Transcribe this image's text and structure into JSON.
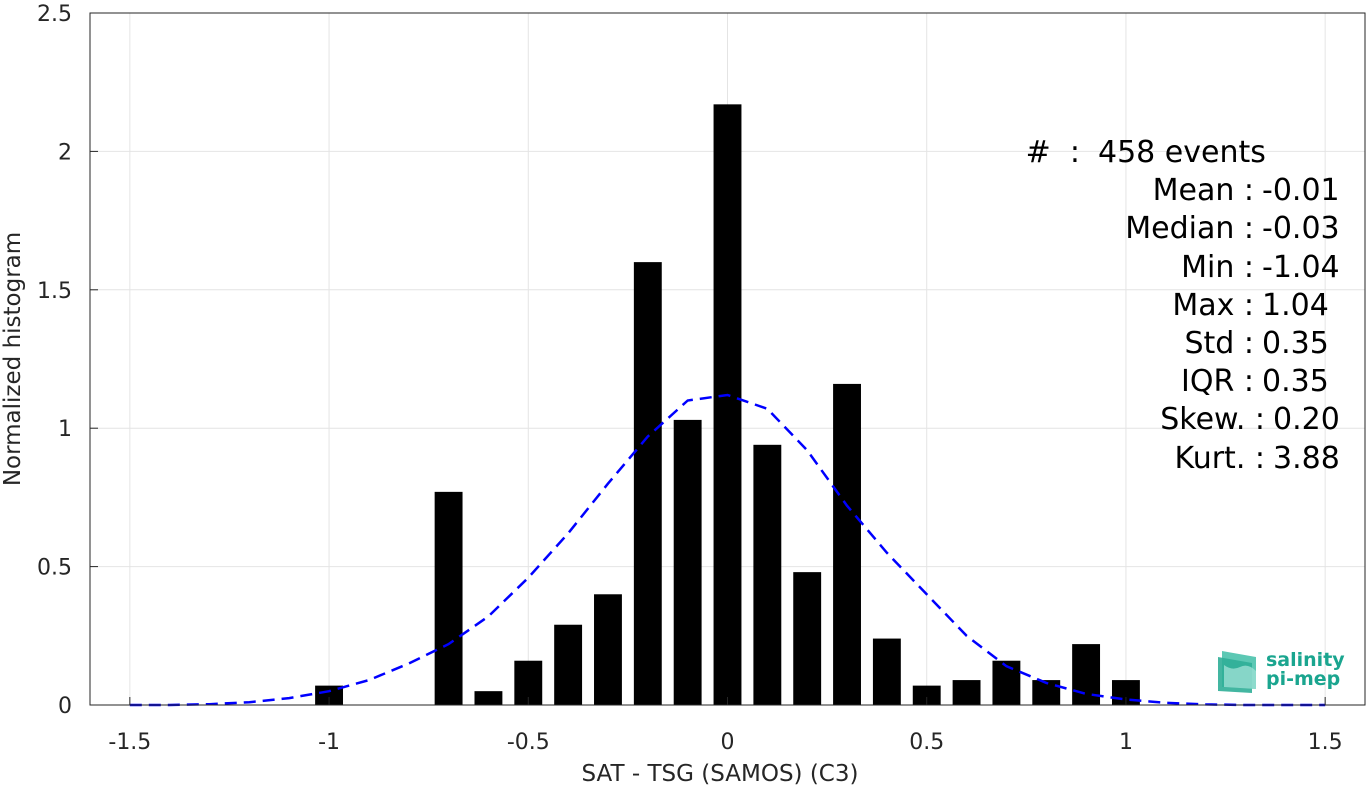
{
  "chart_data": {
    "type": "bar",
    "title": "",
    "xlabel": "SAT - TSG (SAMOS) (C3)",
    "ylabel": "Normalized histogram",
    "xlim": [
      -1.6,
      1.6
    ],
    "ylim": [
      0,
      2.5
    ],
    "xticks": [
      -1.5,
      -1,
      -0.5,
      0,
      0.5,
      1,
      1.5
    ],
    "xtick_labels": [
      "-1.5",
      "-1",
      "-0.5",
      "0",
      "0.5",
      "1",
      "1.5"
    ],
    "yticks": [
      0,
      0.5,
      1,
      1.5,
      2,
      2.5
    ],
    "ytick_labels": [
      "0",
      "0.5",
      "1",
      "1.5",
      "2",
      "2.5"
    ],
    "grid": true,
    "bar_color": "#000000",
    "bar_width": 0.07,
    "bars": [
      {
        "x": -1.0,
        "value": 0.07
      },
      {
        "x": -0.7,
        "value": 0.77
      },
      {
        "x": -0.6,
        "value": 0.05
      },
      {
        "x": -0.5,
        "value": 0.16
      },
      {
        "x": -0.4,
        "value": 0.29
      },
      {
        "x": -0.3,
        "value": 0.4
      },
      {
        "x": -0.2,
        "value": 1.6
      },
      {
        "x": -0.1,
        "value": 1.03
      },
      {
        "x": 0.0,
        "value": 2.17
      },
      {
        "x": 0.1,
        "value": 0.94
      },
      {
        "x": 0.2,
        "value": 0.48
      },
      {
        "x": 0.3,
        "value": 1.16
      },
      {
        "x": 0.4,
        "value": 0.24
      },
      {
        "x": 0.5,
        "value": 0.07
      },
      {
        "x": 0.6,
        "value": 0.09
      },
      {
        "x": 0.7,
        "value": 0.16
      },
      {
        "x": 0.8,
        "value": 0.09
      },
      {
        "x": 0.9,
        "value": 0.22
      },
      {
        "x": 1.0,
        "value": 0.09
      }
    ],
    "fit_curve": {
      "style": "dashed",
      "color": "#0000ff",
      "x": [
        -1.5,
        -1.4,
        -1.3,
        -1.2,
        -1.1,
        -1.0,
        -0.9,
        -0.8,
        -0.7,
        -0.6,
        -0.5,
        -0.4,
        -0.3,
        -0.2,
        -0.1,
        0.0,
        0.1,
        0.2,
        0.3,
        0.4,
        0.5,
        0.6,
        0.7,
        0.8,
        0.9,
        1.0,
        1.1,
        1.2,
        1.3,
        1.4,
        1.5
      ],
      "y": [
        0.0,
        0.0,
        0.003,
        0.01,
        0.025,
        0.05,
        0.09,
        0.15,
        0.22,
        0.32,
        0.46,
        0.62,
        0.8,
        0.97,
        1.1,
        1.12,
        1.07,
        0.92,
        0.72,
        0.55,
        0.4,
        0.25,
        0.14,
        0.08,
        0.04,
        0.02,
        0.008,
        0.002,
        0.0,
        0.0,
        0.0
      ]
    }
  },
  "stats": [
    {
      "name": "#  :",
      "value": "458 events"
    },
    {
      "name": "Mean :",
      "value": "-0.01"
    },
    {
      "name": "Median :",
      "value": "-0.03"
    },
    {
      "name": "Min :",
      "value": "-1.04"
    },
    {
      "name": "Max :",
      "value": "1.04"
    },
    {
      "name": "Std :",
      "value": "0.35"
    },
    {
      "name": "IQR :",
      "value": "0.35"
    },
    {
      "name": "Skew. :",
      "value": "0.20"
    },
    {
      "name": "Kurt. :",
      "value": "3.88"
    }
  ],
  "logo": {
    "line1": "salinity",
    "line2": "pi-mep"
  }
}
